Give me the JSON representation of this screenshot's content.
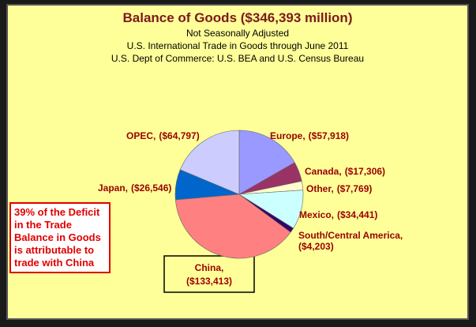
{
  "chart_data": {
    "type": "pie",
    "title": "Balance of Goods ($346,393 million)",
    "subtitles": [
      "Not Seasonally Adjusted",
      "U.S. International Trade in Goods through June 2011",
      "U.S. Dept of Commerce: U.S. BEA and U.S. Census Bureau"
    ],
    "annotation": "39% of the Deficit in the Trade Balance in Goods is attributable to trade with China",
    "categories": [
      "Europe,",
      "Canada,",
      "Other,",
      "Mexico,",
      "South/Central America,",
      "China,",
      "Japan,",
      "OPEC,"
    ],
    "values": [
      -57918,
      -17306,
      -7769,
      -34441,
      -4203,
      -133413,
      -26546,
      -64797
    ],
    "value_labels": [
      "($57,918)",
      "($17,306)",
      "($7,769)",
      "($34,441)",
      "($4,203)",
      "($133,413)",
      "($26,546)",
      "($64,797)"
    ],
    "colors": [
      "#9999ff",
      "#993366",
      "#ffffcc",
      "#ccffff",
      "#330066",
      "#ff8080",
      "#0066cc",
      "#ccccff"
    ]
  }
}
